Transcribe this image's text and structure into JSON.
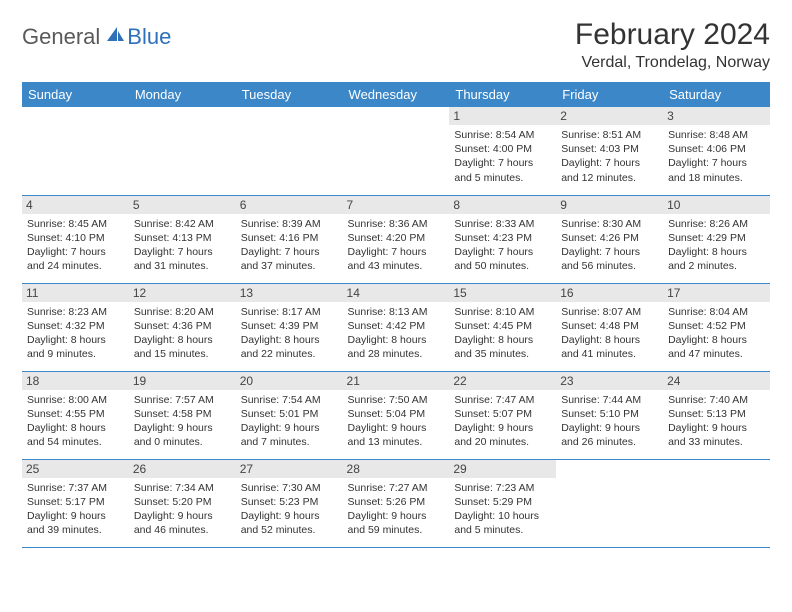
{
  "logo": {
    "text1": "General",
    "text2": "Blue",
    "icon_color": "#2f71b8",
    "text1_color": "#5a5a5a",
    "text2_color": "#2f71b8"
  },
  "title": "February 2024",
  "location": "Verdal, Trondelag, Norway",
  "header_color": "#3b87c8",
  "daynum_bg": "#e8e8e8",
  "border_color": "#3b87c8",
  "text_color": "#333333",
  "weekdays": [
    "Sunday",
    "Monday",
    "Tuesday",
    "Wednesday",
    "Thursday",
    "Friday",
    "Saturday"
  ],
  "weeks": [
    [
      null,
      null,
      null,
      null,
      {
        "n": "1",
        "sr": "Sunrise: 8:54 AM",
        "ss": "Sunset: 4:00 PM",
        "d1": "Daylight: 7 hours",
        "d2": "and 5 minutes."
      },
      {
        "n": "2",
        "sr": "Sunrise: 8:51 AM",
        "ss": "Sunset: 4:03 PM",
        "d1": "Daylight: 7 hours",
        "d2": "and 12 minutes."
      },
      {
        "n": "3",
        "sr": "Sunrise: 8:48 AM",
        "ss": "Sunset: 4:06 PM",
        "d1": "Daylight: 7 hours",
        "d2": "and 18 minutes."
      }
    ],
    [
      {
        "n": "4",
        "sr": "Sunrise: 8:45 AM",
        "ss": "Sunset: 4:10 PM",
        "d1": "Daylight: 7 hours",
        "d2": "and 24 minutes."
      },
      {
        "n": "5",
        "sr": "Sunrise: 8:42 AM",
        "ss": "Sunset: 4:13 PM",
        "d1": "Daylight: 7 hours",
        "d2": "and 31 minutes."
      },
      {
        "n": "6",
        "sr": "Sunrise: 8:39 AM",
        "ss": "Sunset: 4:16 PM",
        "d1": "Daylight: 7 hours",
        "d2": "and 37 minutes."
      },
      {
        "n": "7",
        "sr": "Sunrise: 8:36 AM",
        "ss": "Sunset: 4:20 PM",
        "d1": "Daylight: 7 hours",
        "d2": "and 43 minutes."
      },
      {
        "n": "8",
        "sr": "Sunrise: 8:33 AM",
        "ss": "Sunset: 4:23 PM",
        "d1": "Daylight: 7 hours",
        "d2": "and 50 minutes."
      },
      {
        "n": "9",
        "sr": "Sunrise: 8:30 AM",
        "ss": "Sunset: 4:26 PM",
        "d1": "Daylight: 7 hours",
        "d2": "and 56 minutes."
      },
      {
        "n": "10",
        "sr": "Sunrise: 8:26 AM",
        "ss": "Sunset: 4:29 PM",
        "d1": "Daylight: 8 hours",
        "d2": "and 2 minutes."
      }
    ],
    [
      {
        "n": "11",
        "sr": "Sunrise: 8:23 AM",
        "ss": "Sunset: 4:32 PM",
        "d1": "Daylight: 8 hours",
        "d2": "and 9 minutes."
      },
      {
        "n": "12",
        "sr": "Sunrise: 8:20 AM",
        "ss": "Sunset: 4:36 PM",
        "d1": "Daylight: 8 hours",
        "d2": "and 15 minutes."
      },
      {
        "n": "13",
        "sr": "Sunrise: 8:17 AM",
        "ss": "Sunset: 4:39 PM",
        "d1": "Daylight: 8 hours",
        "d2": "and 22 minutes."
      },
      {
        "n": "14",
        "sr": "Sunrise: 8:13 AM",
        "ss": "Sunset: 4:42 PM",
        "d1": "Daylight: 8 hours",
        "d2": "and 28 minutes."
      },
      {
        "n": "15",
        "sr": "Sunrise: 8:10 AM",
        "ss": "Sunset: 4:45 PM",
        "d1": "Daylight: 8 hours",
        "d2": "and 35 minutes."
      },
      {
        "n": "16",
        "sr": "Sunrise: 8:07 AM",
        "ss": "Sunset: 4:48 PM",
        "d1": "Daylight: 8 hours",
        "d2": "and 41 minutes."
      },
      {
        "n": "17",
        "sr": "Sunrise: 8:04 AM",
        "ss": "Sunset: 4:52 PM",
        "d1": "Daylight: 8 hours",
        "d2": "and 47 minutes."
      }
    ],
    [
      {
        "n": "18",
        "sr": "Sunrise: 8:00 AM",
        "ss": "Sunset: 4:55 PM",
        "d1": "Daylight: 8 hours",
        "d2": "and 54 minutes."
      },
      {
        "n": "19",
        "sr": "Sunrise: 7:57 AM",
        "ss": "Sunset: 4:58 PM",
        "d1": "Daylight: 9 hours",
        "d2": "and 0 minutes."
      },
      {
        "n": "20",
        "sr": "Sunrise: 7:54 AM",
        "ss": "Sunset: 5:01 PM",
        "d1": "Daylight: 9 hours",
        "d2": "and 7 minutes."
      },
      {
        "n": "21",
        "sr": "Sunrise: 7:50 AM",
        "ss": "Sunset: 5:04 PM",
        "d1": "Daylight: 9 hours",
        "d2": "and 13 minutes."
      },
      {
        "n": "22",
        "sr": "Sunrise: 7:47 AM",
        "ss": "Sunset: 5:07 PM",
        "d1": "Daylight: 9 hours",
        "d2": "and 20 minutes."
      },
      {
        "n": "23",
        "sr": "Sunrise: 7:44 AM",
        "ss": "Sunset: 5:10 PM",
        "d1": "Daylight: 9 hours",
        "d2": "and 26 minutes."
      },
      {
        "n": "24",
        "sr": "Sunrise: 7:40 AM",
        "ss": "Sunset: 5:13 PM",
        "d1": "Daylight: 9 hours",
        "d2": "and 33 minutes."
      }
    ],
    [
      {
        "n": "25",
        "sr": "Sunrise: 7:37 AM",
        "ss": "Sunset: 5:17 PM",
        "d1": "Daylight: 9 hours",
        "d2": "and 39 minutes."
      },
      {
        "n": "26",
        "sr": "Sunrise: 7:34 AM",
        "ss": "Sunset: 5:20 PM",
        "d1": "Daylight: 9 hours",
        "d2": "and 46 minutes."
      },
      {
        "n": "27",
        "sr": "Sunrise: 7:30 AM",
        "ss": "Sunset: 5:23 PM",
        "d1": "Daylight: 9 hours",
        "d2": "and 52 minutes."
      },
      {
        "n": "28",
        "sr": "Sunrise: 7:27 AM",
        "ss": "Sunset: 5:26 PM",
        "d1": "Daylight: 9 hours",
        "d2": "and 59 minutes."
      },
      {
        "n": "29",
        "sr": "Sunrise: 7:23 AM",
        "ss": "Sunset: 5:29 PM",
        "d1": "Daylight: 10 hours",
        "d2": "and 5 minutes."
      },
      null,
      null
    ]
  ]
}
